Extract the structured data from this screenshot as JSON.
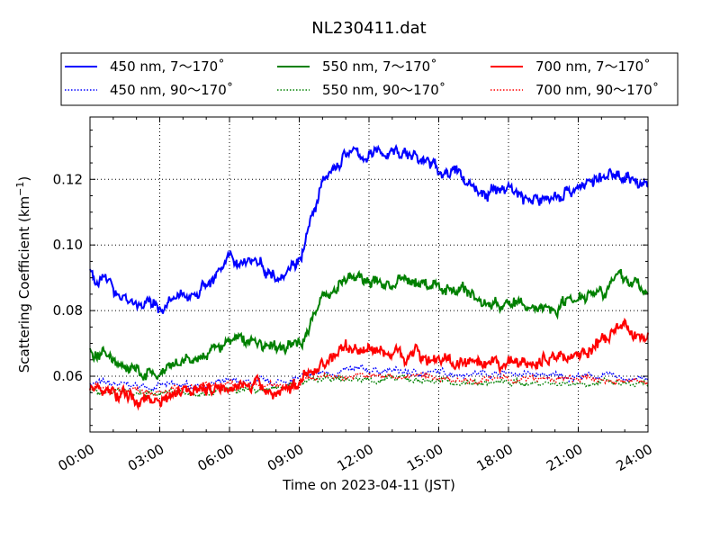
{
  "chart_data": {
    "type": "line",
    "title": "NL230411.dat",
    "xlabel": "Time on 2023-04-11 (JST)",
    "ylabel": "Scattering Coefficient (km",
    "ylabel_sup": "−1",
    "ylabel_end": ")",
    "xlim": [
      "00:00",
      "24:00"
    ],
    "ylim": [
      0.043,
      0.139
    ],
    "x_ticks": [
      "00:00",
      "03:00",
      "06:00",
      "09:00",
      "12:00",
      "15:00",
      "18:00",
      "21:00",
      "24:00"
    ],
    "y_ticks": [
      "0.06",
      "0.08",
      "0.10",
      "0.12"
    ],
    "grid": true,
    "legend_position": "top",
    "series": [
      {
        "name": "450 nm, 7～170˚",
        "color": "#0000ff",
        "style": "solid",
        "times": [
          "00:00",
          "01:00",
          "02:00",
          "03:00",
          "04:00",
          "05:00",
          "06:00",
          "07:00",
          "08:00",
          "09:00",
          "10:00",
          "11:00",
          "12:00",
          "13:00",
          "14:00",
          "15:00",
          "16:00",
          "17:00",
          "18:00",
          "19:00",
          "20:00",
          "21:00",
          "22:00",
          "23:00",
          "24:00"
        ],
        "values": [
          0.092,
          0.087,
          0.082,
          0.081,
          0.084,
          0.088,
          0.095,
          0.096,
          0.091,
          0.096,
          0.118,
          0.128,
          0.127,
          0.129,
          0.127,
          0.123,
          0.121,
          0.115,
          0.118,
          0.113,
          0.115,
          0.118,
          0.12,
          0.122,
          0.117
        ]
      },
      {
        "name": "450 nm, 90～170˚",
        "color": "#0000ff",
        "style": "dotted",
        "times": [
          "00:00",
          "02:00",
          "04:00",
          "06:00",
          "08:00",
          "10:00",
          "12:00",
          "14:00",
          "16:00",
          "18:00",
          "20:00",
          "22:00",
          "24:00"
        ],
        "values": [
          0.058,
          0.057,
          0.057,
          0.058,
          0.058,
          0.061,
          0.062,
          0.061,
          0.061,
          0.061,
          0.06,
          0.06,
          0.059
        ]
      },
      {
        "name": "550 nm, 7～170˚",
        "color": "#008000",
        "style": "solid",
        "times": [
          "00:00",
          "01:00",
          "02:00",
          "03:00",
          "04:00",
          "05:00",
          "06:00",
          "07:00",
          "08:00",
          "09:00",
          "10:00",
          "11:00",
          "12:00",
          "13:00",
          "14:00",
          "15:00",
          "16:00",
          "17:00",
          "18:00",
          "19:00",
          "20:00",
          "21:00",
          "22:00",
          "23:00",
          "24:00"
        ],
        "values": [
          0.068,
          0.065,
          0.061,
          0.06,
          0.064,
          0.066,
          0.071,
          0.071,
          0.068,
          0.07,
          0.084,
          0.09,
          0.089,
          0.088,
          0.089,
          0.087,
          0.087,
          0.082,
          0.082,
          0.081,
          0.081,
          0.085,
          0.087,
          0.09,
          0.086
        ]
      },
      {
        "name": "550 nm, 90～170˚",
        "color": "#008000",
        "style": "dotted",
        "times": [
          "00:00",
          "02:00",
          "04:00",
          "06:00",
          "08:00",
          "10:00",
          "12:00",
          "14:00",
          "16:00",
          "18:00",
          "20:00",
          "22:00",
          "24:00"
        ],
        "values": [
          0.055,
          0.055,
          0.055,
          0.056,
          0.056,
          0.059,
          0.059,
          0.059,
          0.058,
          0.058,
          0.058,
          0.058,
          0.057
        ]
      },
      {
        "name": "700 nm, 7～170˚",
        "color": "#ff0000",
        "style": "solid",
        "times": [
          "00:00",
          "01:00",
          "02:00",
          "03:00",
          "04:00",
          "05:00",
          "06:00",
          "07:00",
          "08:00",
          "09:00",
          "10:00",
          "11:00",
          "12:00",
          "13:00",
          "14:00",
          "15:00",
          "16:00",
          "17:00",
          "18:00",
          "19:00",
          "20:00",
          "21:00",
          "22:00",
          "23:00",
          "24:00"
        ],
        "values": [
          0.056,
          0.055,
          0.053,
          0.053,
          0.057,
          0.056,
          0.058,
          0.057,
          0.055,
          0.058,
          0.064,
          0.069,
          0.068,
          0.067,
          0.067,
          0.065,
          0.064,
          0.062,
          0.064,
          0.064,
          0.066,
          0.067,
          0.07,
          0.075,
          0.071
        ]
      },
      {
        "name": "700 nm, 90～170˚",
        "color": "#ff0000",
        "style": "dotted",
        "times": [
          "00:00",
          "02:00",
          "04:00",
          "06:00",
          "08:00",
          "10:00",
          "12:00",
          "14:00",
          "16:00",
          "18:00",
          "20:00",
          "22:00",
          "24:00"
        ],
        "values": [
          0.056,
          0.056,
          0.056,
          0.057,
          0.057,
          0.06,
          0.06,
          0.06,
          0.059,
          0.059,
          0.059,
          0.059,
          0.058
        ]
      }
    ]
  }
}
